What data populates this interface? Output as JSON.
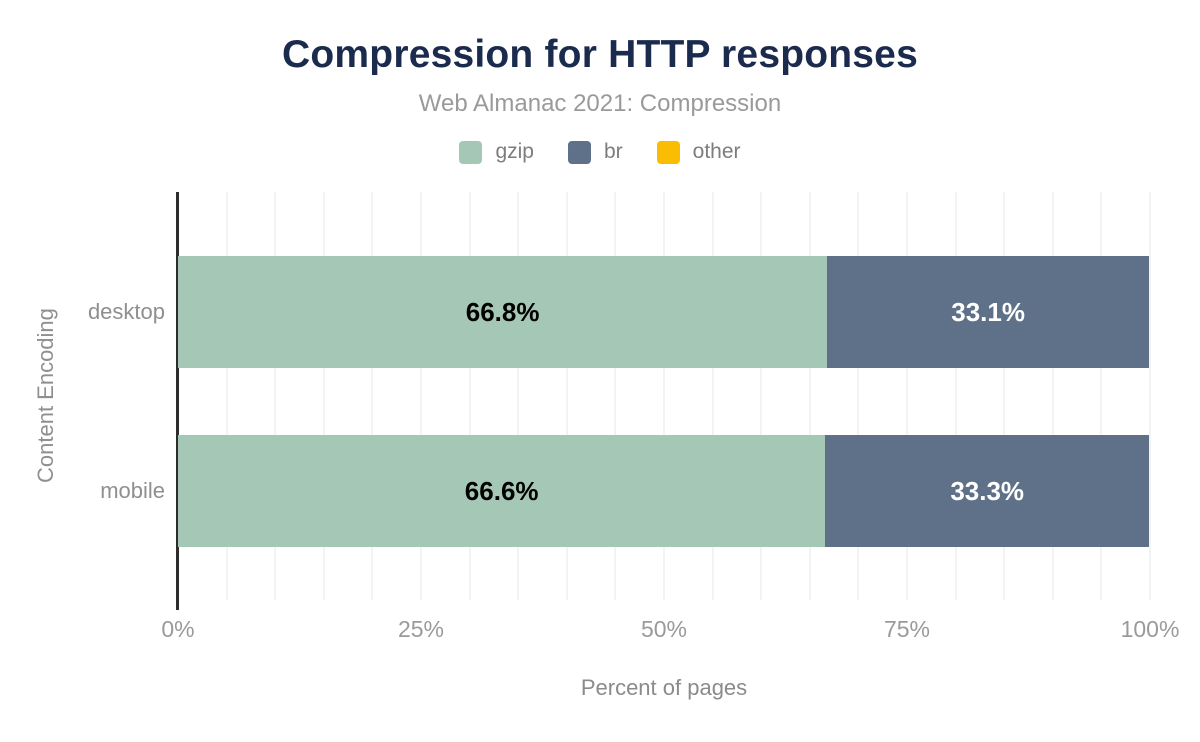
{
  "page": {
    "background": "#ffffff"
  },
  "chart": {
    "title": "Compression for HTTP responses",
    "subtitle": "Web Almanac 2021: Compression",
    "x_axis_title": "Percent of pages",
    "y_axis_title": "Content Encoding"
  },
  "colors": {
    "title_navy": "#1b2b4e",
    "subtitle_gray": "#9a9a9a",
    "axis_line": "#2d2d2d",
    "gridline": "#f3f3f3",
    "tick_label": "#9a9a9a",
    "category_label": "#8f8f8f",
    "gzip_green": "#a5c8b6",
    "br_slate": "#5f7189",
    "other_yellow": "#fbbc04"
  },
  "chart_data": {
    "type": "bar",
    "orientation": "horizontal",
    "stacked": true,
    "title": "Compression for HTTP responses",
    "subtitle": "Web Almanac 2021: Compression",
    "xlabel": "Percent of pages",
    "ylabel": "Content Encoding",
    "categories": [
      "desktop",
      "mobile"
    ],
    "series": [
      {
        "name": "gzip",
        "color": "#a5c8b6",
        "text_color": "#000000",
        "values": [
          66.8,
          66.6
        ],
        "labels": [
          "66.8%",
          "66.6%"
        ]
      },
      {
        "name": "br",
        "color": "#5f7189",
        "text_color": "#ffffff",
        "values": [
          33.1,
          33.3
        ],
        "labels": [
          "33.1%",
          "33.3%"
        ]
      },
      {
        "name": "other",
        "color": "#fbbc04",
        "text_color": "#000000",
        "values": [
          null,
          null
        ],
        "labels": []
      }
    ],
    "xlim": [
      0,
      100
    ],
    "x_ticks": [
      {
        "value": 0,
        "label": "0%"
      },
      {
        "value": 25,
        "label": "25%"
      },
      {
        "value": 50,
        "label": "50%"
      },
      {
        "value": 75,
        "label": "75%"
      },
      {
        "value": 100,
        "label": "100%"
      }
    ],
    "minor_gridline_step_percent": 5,
    "grid": true,
    "legend_position": "top",
    "legend": [
      "gzip",
      "br",
      "other"
    ]
  }
}
